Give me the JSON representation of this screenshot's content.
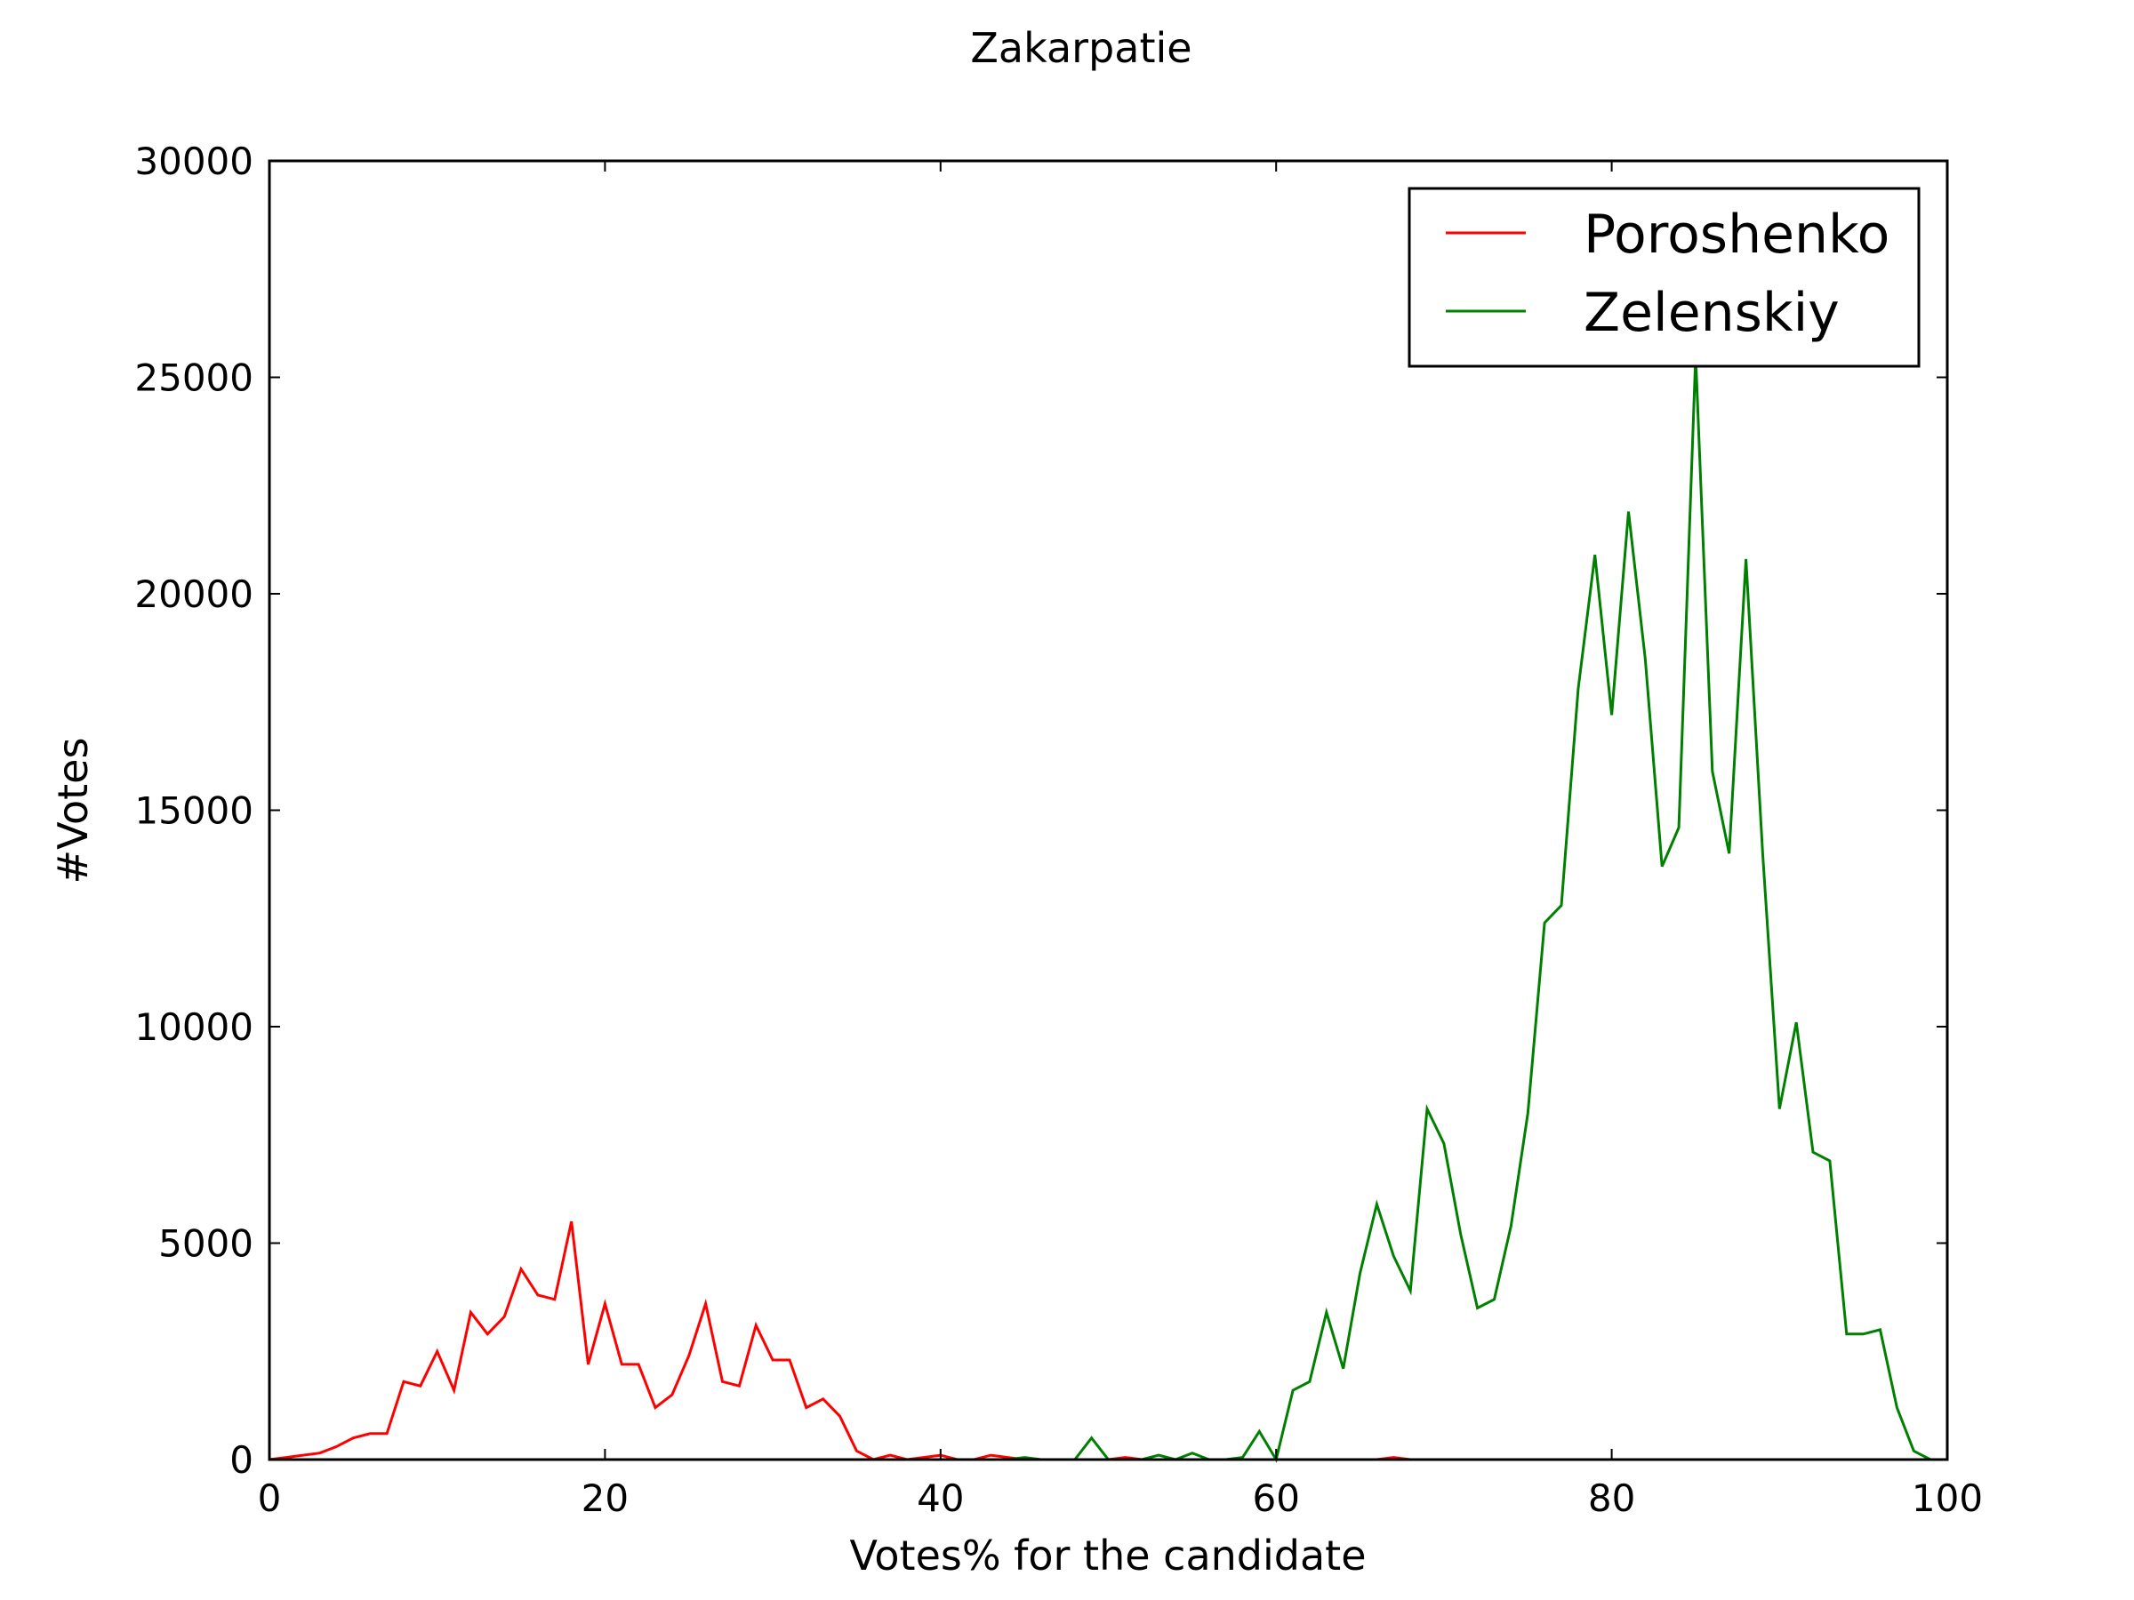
{
  "chart_data": {
    "type": "line",
    "title": "Zakarpatie",
    "xlabel": "Votes% for the candidate",
    "ylabel": "#Votes",
    "xlim": [
      0,
      100
    ],
    "ylim": [
      0,
      30000
    ],
    "xticks": [
      0,
      20,
      40,
      60,
      80,
      100
    ],
    "yticks": [
      0,
      5000,
      10000,
      15000,
      20000,
      25000,
      30000
    ],
    "grid": false,
    "legend_position": "top-right",
    "series": [
      {
        "name": "Poroshenko",
        "color": "#ff0000",
        "x": [
          0,
          1,
          2,
          3,
          4,
          5,
          6,
          7,
          8,
          9,
          10,
          11,
          12,
          13,
          14,
          15,
          16,
          17,
          18,
          19,
          20,
          21,
          22,
          23,
          24,
          25,
          26,
          27,
          28,
          29,
          30,
          31,
          32,
          33,
          34,
          35,
          36,
          37,
          38,
          39,
          40,
          41,
          42,
          43,
          44,
          45,
          46,
          47,
          48,
          49,
          50,
          51,
          52,
          53,
          54,
          55,
          56,
          57,
          58,
          59,
          60,
          61,
          62,
          63,
          64,
          65,
          66,
          67,
          68,
          69,
          70,
          71,
          72,
          73,
          74,
          75,
          76,
          77,
          78,
          79,
          80,
          81,
          82,
          83,
          84,
          85,
          86,
          87,
          88,
          89,
          90,
          91,
          92,
          93,
          94,
          95,
          96,
          97,
          98,
          99,
          100
        ],
        "values": [
          0,
          50,
          100,
          150,
          300,
          500,
          600,
          600,
          1800,
          1700,
          2500,
          1600,
          3400,
          2900,
          3300,
          4400,
          3800,
          3700,
          5500,
          2200,
          3600,
          2200,
          2200,
          1200,
          1500,
          2400,
          3600,
          1800,
          1700,
          3100,
          2300,
          2300,
          1200,
          1400,
          1000,
          200,
          0,
          100,
          0,
          50,
          100,
          0,
          0,
          100,
          50,
          0,
          0,
          0,
          0,
          0,
          0,
          50,
          0,
          0,
          0,
          0,
          0,
          0,
          0,
          0,
          0,
          0,
          0,
          0,
          0,
          0,
          0,
          50,
          0,
          0,
          0,
          0,
          0,
          0,
          0,
          0,
          0,
          0,
          0,
          0,
          0,
          0,
          0,
          0,
          0,
          0,
          0,
          0,
          0,
          0,
          0,
          0,
          0,
          0,
          0,
          0,
          0,
          0,
          0,
          0,
          0
        ]
      },
      {
        "name": "Zelenskiy",
        "color": "#008000",
        "x": [
          0,
          1,
          2,
          3,
          4,
          5,
          6,
          7,
          8,
          9,
          10,
          11,
          12,
          13,
          14,
          15,
          16,
          17,
          18,
          19,
          20,
          21,
          22,
          23,
          24,
          25,
          26,
          27,
          28,
          29,
          30,
          31,
          32,
          33,
          34,
          35,
          36,
          37,
          38,
          39,
          40,
          41,
          42,
          43,
          44,
          45,
          46,
          47,
          48,
          49,
          50,
          51,
          52,
          53,
          54,
          55,
          56,
          57,
          58,
          59,
          60,
          61,
          62,
          63,
          64,
          65,
          66,
          67,
          68,
          69,
          70,
          71,
          72,
          73,
          74,
          75,
          76,
          77,
          78,
          79,
          80,
          81,
          82,
          83,
          84,
          85,
          86,
          87,
          88,
          89,
          90,
          91,
          92,
          93,
          94,
          95,
          96,
          97,
          98,
          99,
          100
        ],
        "values": [
          0,
          0,
          0,
          0,
          0,
          0,
          0,
          0,
          0,
          0,
          0,
          0,
          0,
          0,
          0,
          0,
          0,
          0,
          0,
          0,
          0,
          0,
          0,
          0,
          0,
          0,
          0,
          0,
          0,
          0,
          0,
          0,
          0,
          0,
          0,
          0,
          0,
          0,
          0,
          0,
          0,
          0,
          0,
          0,
          0,
          50,
          0,
          0,
          0,
          500,
          0,
          0,
          0,
          100,
          0,
          150,
          0,
          0,
          50,
          650,
          0,
          1600,
          1800,
          3400,
          2100,
          4300,
          5900,
          4700,
          3900,
          8100,
          7300,
          5200,
          3500,
          3700,
          5400,
          8000,
          12400,
          12800,
          17800,
          20900,
          17200,
          21900,
          18500,
          13700,
          14600,
          25500,
          15900,
          14000,
          20800,
          14000,
          8100,
          10100,
          7100,
          6900,
          2900,
          2900,
          3000,
          1200,
          200,
          0,
          0
        ]
      }
    ]
  }
}
